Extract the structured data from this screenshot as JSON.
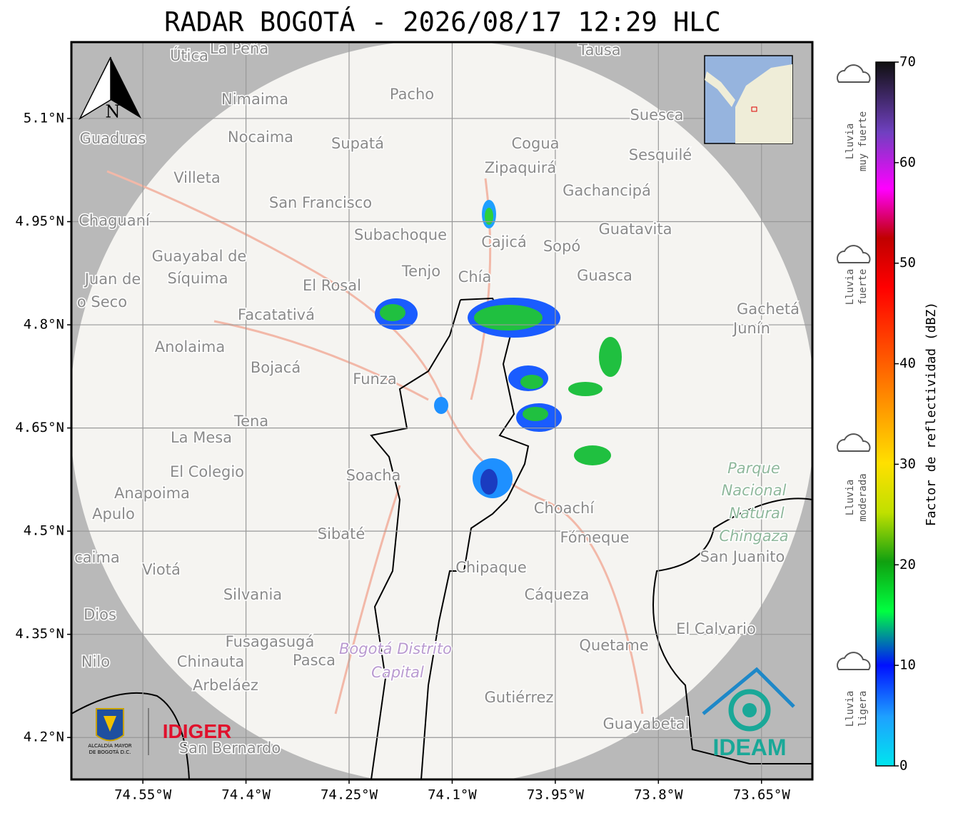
{
  "title": "RADAR BOGOTÁ - 2026/08/17 12:29 HLC",
  "map": {
    "xlim": [
      -74.654,
      -73.576
    ],
    "ylim": [
      4.139,
      5.211
    ],
    "xticks": [
      {
        "value": -74.55,
        "label": "74.55°W"
      },
      {
        "value": -74.4,
        "label": "74.4°W"
      },
      {
        "value": -74.25,
        "label": "74.25°W"
      },
      {
        "value": -74.1,
        "label": "74.1°W"
      },
      {
        "value": -73.95,
        "label": "73.95°W"
      },
      {
        "value": -73.8,
        "label": "73.8°W"
      },
      {
        "value": -73.65,
        "label": "73.65°W"
      }
    ],
    "yticks": [
      {
        "value": 5.1,
        "label": "5.1°N"
      },
      {
        "value": 4.95,
        "label": "4.95°N"
      },
      {
        "value": 4.8,
        "label": "4.8°N"
      },
      {
        "value": 4.65,
        "label": "4.65°N"
      },
      {
        "value": 4.5,
        "label": "4.5°N"
      },
      {
        "value": 4.35,
        "label": "4.35°N"
      },
      {
        "value": 4.2,
        "label": "4.2°N"
      }
    ],
    "grid": true,
    "north_label": "N",
    "places": [
      "Útica",
      "La Peña",
      "Tausa",
      "Pacho",
      "Nimaima",
      "Guaduas",
      "Nocaima",
      "Supatá",
      "Cogua",
      "Suesca",
      "Sesquilé",
      "Zipaquirá",
      "Villeta",
      "Gachancipá",
      "San Francisco",
      "Chaguaní",
      "Guatavita",
      "Subachoque",
      "Cajicá",
      "Sopó",
      "Guayabal de",
      "Síquima",
      "Juan de",
      "Tenjo",
      "Chía",
      "Guasca",
      "o Seco",
      "El Rosal",
      "Facatativá",
      "Gachetá",
      "Junín",
      "Anolaima",
      "Bojacá",
      "Funza",
      "Tena",
      "La Mesa",
      "El Colegio",
      "Soacha",
      "Anapoima",
      "Apulo",
      "Choachí",
      "Sibaté",
      "Fómeque",
      "San Juanito",
      "caima",
      "Viotá",
      "Chipaque",
      "Silvania",
      "Cáqueza",
      "Dios",
      "El Calvario",
      "Fusagasugá",
      "Quetame",
      "Nilo",
      "Chinauta",
      "Pasca",
      "Arbeláez",
      "Gutiérrez",
      "Guayabetal",
      "San Bernardo"
    ],
    "park_labels": [
      "Parque",
      "Nacional",
      "Natural",
      "Chingaza"
    ],
    "district_labels": [
      "Bogotá Distrito",
      "Capital"
    ]
  },
  "colorbar": {
    "label": "Factor de reflectividad (dBZ)",
    "lim": [
      0,
      70
    ],
    "ticks": [
      0,
      10,
      20,
      30,
      40,
      50,
      60,
      70
    ]
  },
  "rain_levels": [
    [
      "Lluvia",
      "muy fuerte"
    ],
    [
      "Lluvia",
      "fuerte"
    ],
    [
      "Lluvia",
      "moderada"
    ],
    [
      "Lluvia",
      "ligera"
    ]
  ],
  "logos": {
    "alcaldia": [
      "ALCALDÍA MAYOR",
      "DE BOGOTÁ D.C."
    ],
    "idiger": "IDIGER",
    "ideam": "IDEAM"
  }
}
